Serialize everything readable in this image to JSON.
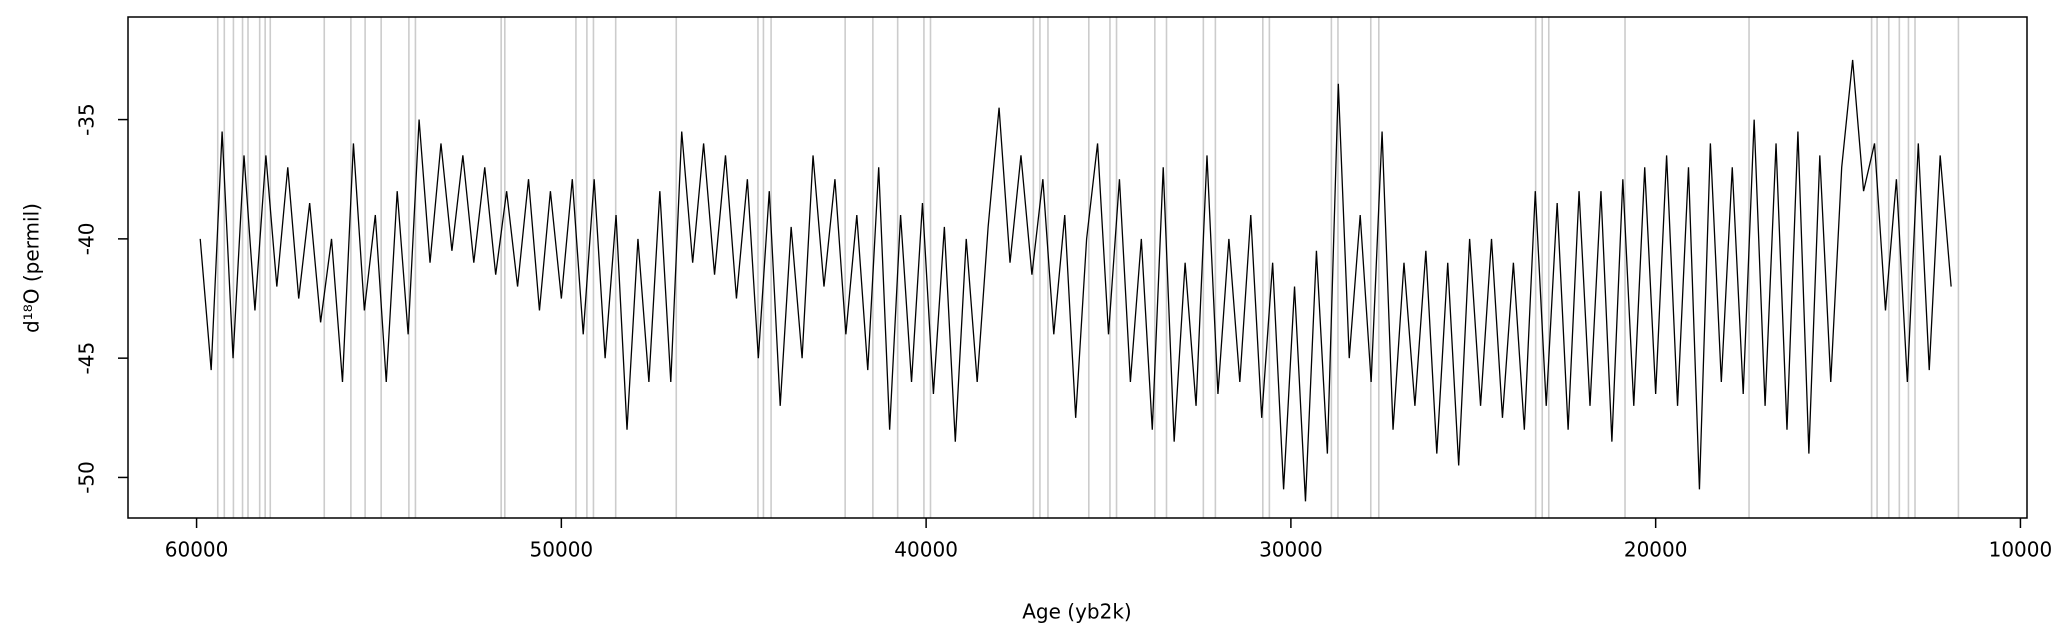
{
  "chart_data": {
    "type": "line",
    "xlabel": "Age (yb2k)",
    "ylabel": "d¹⁸O (permil)",
    "color": "#000000",
    "vline_color": "#cccccc",
    "xlim": [
      61880,
      9820
    ],
    "ylim": [
      -51.7,
      -30.7
    ],
    "xticks": [
      60000,
      50000,
      40000,
      30000,
      20000,
      10000
    ],
    "yticks": [
      -50,
      -45,
      -40,
      -35
    ],
    "vlines": [
      59420,
      59240,
      58990,
      58740,
      58590,
      58270,
      58120,
      57980,
      56500,
      55770,
      55380,
      54940,
      54180,
      54000,
      51650,
      51550,
      49600,
      49300,
      49120,
      48510,
      46850,
      44610,
      44460,
      44250,
      42220,
      41460,
      40780,
      40060,
      39880,
      37060,
      36880,
      36660,
      35540,
      34960,
      34780,
      33730,
      33410,
      32400,
      32070,
      30770,
      30590,
      28890,
      28710,
      27810,
      27590,
      23290,
      23110,
      22930,
      20840,
      17440,
      14080,
      13930,
      13610,
      13320,
      13070,
      12890,
      11700
    ],
    "x": [
      59900,
      59600,
      59300,
      59000,
      58700,
      58400,
      58100,
      57800,
      57500,
      57200,
      56900,
      56600,
      56300,
      56000,
      55700,
      55400,
      55100,
      54800,
      54500,
      54200,
      53900,
      53600,
      53300,
      53000,
      52700,
      52400,
      52100,
      51800,
      51500,
      51200,
      50900,
      50600,
      50300,
      50000,
      49700,
      49400,
      49100,
      48800,
      48500,
      48200,
      47900,
      47600,
      47300,
      47000,
      46700,
      46400,
      46100,
      45800,
      45500,
      45200,
      44900,
      44600,
      44300,
      44000,
      43700,
      43400,
      43100,
      42800,
      42500,
      42200,
      41900,
      41600,
      41300,
      41000,
      40700,
      40400,
      40100,
      39800,
      39500,
      39200,
      38900,
      38600,
      38300,
      38000,
      37700,
      37400,
      37100,
      36800,
      36500,
      36200,
      35900,
      35600,
      35300,
      35000,
      34700,
      34400,
      34100,
      33800,
      33500,
      33200,
      32900,
      32600,
      32300,
      32000,
      31700,
      31400,
      31100,
      30800,
      30500,
      30200,
      29900,
      29600,
      29300,
      29000,
      28700,
      28400,
      28100,
      27800,
      27500,
      27200,
      26900,
      26600,
      26300,
      26000,
      25700,
      25400,
      25100,
      24800,
      24500,
      24200,
      23900,
      23600,
      23300,
      23000,
      22700,
      22400,
      22100,
      21800,
      21500,
      21200,
      20900,
      20600,
      20300,
      20000,
      19700,
      19400,
      19100,
      18800,
      18500,
      18200,
      17900,
      17600,
      17300,
      17000,
      16700,
      16400,
      16100,
      15800,
      15500,
      15200,
      14900,
      14600,
      14300,
      14000,
      13700,
      13400,
      13100,
      12800,
      12500,
      12200,
      11900
    ],
    "values": [
      -40,
      -45.5,
      -35.5,
      -45,
      -36.5,
      -43,
      -36.5,
      -42,
      -37,
      -42.5,
      -38.5,
      -43.5,
      -40,
      -46,
      -36,
      -43,
      -39,
      -46,
      -38,
      -44,
      -35,
      -41,
      -36,
      -40.5,
      -36.5,
      -41,
      -37,
      -41.5,
      -38,
      -42,
      -37.5,
      -43,
      -38,
      -42.5,
      -37.5,
      -44,
      -37.5,
      -45,
      -39,
      -48,
      -40,
      -46,
      -38,
      -46,
      -35.5,
      -41,
      -36,
      -41.5,
      -36.5,
      -42.5,
      -37.5,
      -45,
      -38,
      -47,
      -39.5,
      -45,
      -36.5,
      -42,
      -37.5,
      -44,
      -39,
      -45.5,
      -37,
      -48,
      -39,
      -46,
      -38.5,
      -46.5,
      -39.5,
      -48.5,
      -40,
      -46,
      -39.5,
      -34.5,
      -41,
      -36.5,
      -41.5,
      -37.5,
      -44,
      -39,
      -47.5,
      -40,
      -36,
      -44,
      -37.5,
      -46,
      -40,
      -48,
      -37,
      -48.5,
      -41,
      -47,
      -36.5,
      -46.5,
      -40,
      -46,
      -39,
      -47.5,
      -41,
      -50.5,
      -42,
      -51,
      -40.5,
      -49,
      -33.5,
      -45,
      -39,
      -46,
      -35.5,
      -48,
      -41,
      -47,
      -40.5,
      -49,
      -41,
      -49.5,
      -40,
      -47,
      -40,
      -47.5,
      -41,
      -48,
      -38,
      -47,
      -38.5,
      -48,
      -38,
      -47,
      -38,
      -48.5,
      -37.5,
      -47,
      -37,
      -46.5,
      -36.5,
      -47,
      -37,
      -50.5,
      -36,
      -46,
      -37,
      -46.5,
      -35,
      -47,
      -36,
      -48,
      -35.5,
      -49,
      -36.5,
      -46,
      -37,
      -32.5,
      -38,
      -36,
      -43,
      -37.5,
      -46,
      -36,
      -45.5,
      -36.5,
      -42
    ]
  }
}
